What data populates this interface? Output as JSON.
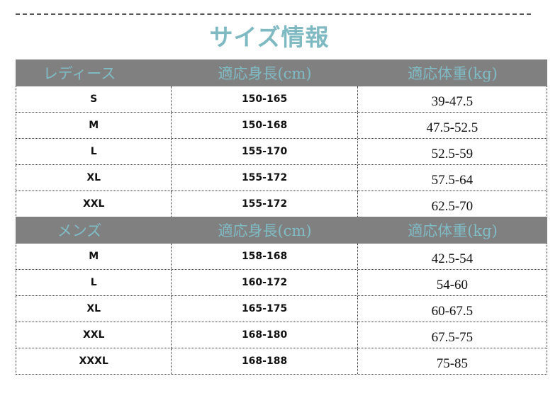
{
  "title": "サイズ情報",
  "sections": [
    {
      "header": {
        "category": "レディース",
        "height": "適応身長(cm)",
        "weight": "適応体重(kg)"
      },
      "rows": [
        {
          "size": "S",
          "height": "150-165",
          "weight": "39-47.5"
        },
        {
          "size": "M",
          "height": "150-168",
          "weight": "47.5-52.5"
        },
        {
          "size": "L",
          "height": "155-170",
          "weight": "52.5-59"
        },
        {
          "size": "XL",
          "height": "155-172",
          "weight": "57.5-64"
        },
        {
          "size": "XXL",
          "height": "155-172",
          "weight": "62.5-70"
        }
      ]
    },
    {
      "header": {
        "category": "メンズ",
        "height": "適応身長(cm)",
        "weight": "適応体重(kg)"
      },
      "rows": [
        {
          "size": "M",
          "height": "158-168",
          "weight": "42.5-54"
        },
        {
          "size": "L",
          "height": "160-172",
          "weight": "54-60"
        },
        {
          "size": "XL",
          "height": "165-175",
          "weight": "60-67.5"
        },
        {
          "size": "XXL",
          "height": "168-180",
          "weight": "67.5-75"
        },
        {
          "size": "XXXL",
          "height": "168-188",
          "weight": "75-85"
        }
      ]
    }
  ],
  "colors": {
    "header_bg": "#808080",
    "accent": "#7fb9c2"
  }
}
